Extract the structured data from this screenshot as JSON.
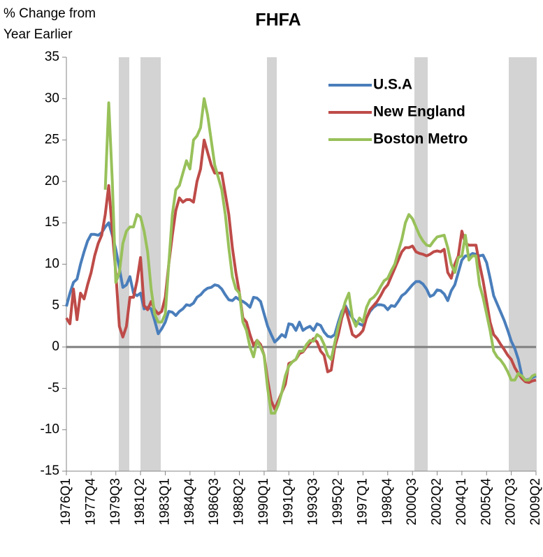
{
  "chart_data": {
    "type": "line",
    "title": "FHFA",
    "ylabel": [
      "% Change from",
      "Year Earlier"
    ],
    "categories": [
      "1976Q1",
      null,
      null,
      null,
      null,
      null,
      null,
      "1977Q4",
      null,
      null,
      null,
      null,
      null,
      null,
      "1979Q3",
      null,
      null,
      null,
      null,
      null,
      null,
      "1981Q2",
      null,
      null,
      null,
      null,
      null,
      null,
      "1983Q1",
      null,
      null,
      null,
      null,
      null,
      null,
      "1984Q4",
      null,
      null,
      null,
      null,
      null,
      null,
      "1986Q3",
      null,
      null,
      null,
      null,
      null,
      null,
      "1988Q2",
      null,
      null,
      null,
      null,
      null,
      null,
      "1990Q1",
      null,
      null,
      null,
      null,
      null,
      null,
      "1991Q4",
      null,
      null,
      null,
      null,
      null,
      null,
      "1993Q3",
      null,
      null,
      null,
      null,
      null,
      null,
      "1995Q2",
      null,
      null,
      null,
      null,
      null,
      null,
      "1997Q1",
      null,
      null,
      null,
      null,
      null,
      null,
      "1998Q4",
      null,
      null,
      null,
      null,
      null,
      null,
      "2000Q3",
      null,
      null,
      null,
      null,
      null,
      null,
      "2002Q2",
      null,
      null,
      null,
      null,
      null,
      null,
      "2004Q1",
      null,
      null,
      null,
      null,
      null,
      null,
      "2005Q4",
      null,
      null,
      null,
      null,
      null,
      null,
      "2007Q3",
      null,
      null,
      null,
      null,
      null,
      null,
      "2009Q2"
    ],
    "series": [
      {
        "name": "U.S.A",
        "color": "#4a7ebb",
        "values": [
          4.9,
          6.5,
          7.8,
          8.2,
          10,
          11.5,
          12.8,
          13.6,
          13.6,
          13.5,
          13.8,
          14.5,
          15,
          13.5,
          11.8,
          9.5,
          7.2,
          7.5,
          8.5,
          6.5,
          6.2,
          6.5,
          4.6,
          4.8,
          4.6,
          3.2,
          1.6,
          2.2,
          3,
          4.3,
          4.2,
          3.8,
          4.3,
          4.6,
          5.1,
          5,
          5.3,
          6,
          6.3,
          6.8,
          7.1,
          7.2,
          7.5,
          7.4,
          7,
          6.3,
          5.7,
          5.6,
          6,
          5.7,
          5.5,
          5.2,
          4.8,
          6,
          5.9,
          5.5,
          4,
          2.5,
          1.5,
          0.6,
          1,
          1.5,
          1.2,
          2.8,
          2.7,
          2,
          3,
          2,
          2.3,
          2.5,
          2,
          2.8,
          2.6,
          1.8,
          1.3,
          1.2,
          1.5,
          3,
          4.3,
          5,
          4.2,
          3.5,
          3,
          2.8,
          2.6,
          3.5,
          4.3,
          4.8,
          5.1,
          5.1,
          5,
          4.5,
          5,
          4.9,
          5.5,
          6.2,
          6.5,
          7,
          7.5,
          7.9,
          7.9,
          7.6,
          7,
          6.1,
          6.3,
          6.9,
          6.8,
          6.4,
          5.6,
          6.8,
          7.5,
          9,
          10.5,
          11,
          11,
          11.3,
          11.2,
          11,
          11.1,
          10.2,
          8.3,
          6.2,
          5.2,
          4.2,
          3.2,
          2,
          0.7,
          -0.2,
          -1.5,
          -3.5,
          -4,
          -3.9,
          -3.7,
          -3.5
        ]
      },
      {
        "name": "New England",
        "color": "#be4b48",
        "values": [
          3.5,
          2.8,
          7,
          3.3,
          6.5,
          5.8,
          7.5,
          9,
          11,
          12.5,
          13.5,
          16,
          19.5,
          14,
          9,
          2.5,
          1.2,
          2.5,
          6,
          6,
          8,
          10.8,
          5,
          4.5,
          5.5,
          4.5,
          4,
          4.3,
          6,
          10,
          13.5,
          16.5,
          18,
          17.5,
          17.8,
          17.8,
          17.5,
          20,
          21.5,
          25,
          23.5,
          22,
          21,
          21,
          21,
          18.5,
          16,
          12,
          9,
          6.5,
          3.5,
          3,
          1.5,
          0.2,
          0.8,
          0.3,
          -1,
          -4,
          -6.5,
          -7.5,
          -6.5,
          -5.5,
          -4.5,
          -2,
          -1.8,
          -1.5,
          -0.8,
          -0.6,
          0,
          0.5,
          1,
          0.6,
          -0.5,
          -1,
          -3,
          -2.8,
          0,
          1.5,
          3.5,
          4.8,
          3.2,
          1.5,
          1.2,
          1.5,
          2,
          3.5,
          4.5,
          5,
          5.5,
          6.2,
          7,
          7.5,
          8.5,
          9.5,
          10.5,
          11.5,
          12,
          12,
          12.2,
          11.5,
          11.3,
          11.2,
          11,
          11.2,
          11.5,
          11.6,
          11.5,
          11.8,
          9,
          8.3,
          10,
          11,
          14,
          12.5,
          12.3,
          12.3,
          12.3,
          10,
          8,
          5.5,
          3,
          1.5,
          1,
          0.3,
          -0.3,
          -1,
          -1.5,
          -2.5,
          -3.2,
          -3.8,
          -4.2,
          -4.3,
          -4.1,
          -4
        ]
      },
      {
        "name": "Boston Metro",
        "color": "#98c15a",
        "values": [
          null,
          null,
          null,
          null,
          null,
          null,
          null,
          null,
          null,
          null,
          null,
          19,
          29.5,
          20,
          7.8,
          9,
          12.5,
          14,
          14.5,
          14.5,
          16,
          15.7,
          14,
          11.5,
          7,
          4,
          3,
          3,
          4,
          10,
          16,
          19,
          19.5,
          21,
          22.5,
          21.5,
          25,
          25.5,
          26.5,
          30,
          28,
          25,
          22,
          20.5,
          19,
          16,
          12,
          8.5,
          7,
          6.5,
          3,
          2,
          0,
          -1.2,
          0.8,
          0,
          -1,
          -5,
          -8,
          -8,
          -7,
          -5.5,
          -3.5,
          -2.3,
          -1.8,
          -1.5,
          -0.5,
          -0.5,
          0.3,
          0.8,
          0.7,
          1.5,
          1.2,
          0.3,
          -1,
          -1.5,
          0.5,
          2.5,
          4,
          5.5,
          6.5,
          3.5,
          2.5,
          3.5,
          3,
          4.8,
          5.7,
          6,
          6.5,
          7.3,
          8,
          8.3,
          9.2,
          10,
          11.5,
          13,
          15,
          16,
          15.5,
          14.5,
          13.5,
          12.8,
          12.3,
          12.2,
          12.8,
          13.3,
          13.4,
          13.5,
          12,
          10,
          9,
          10.8,
          11,
          13.5,
          10.5,
          11,
          11,
          7.5,
          6,
          4,
          2,
          -0.5,
          -1.2,
          -1.6,
          -2.2,
          -3,
          -4,
          -4,
          -3.2,
          -3.5,
          -4,
          -4,
          -3.5,
          -3.3
        ]
      }
    ],
    "ylim": [
      -15,
      35
    ],
    "yticks": [
      -15,
      -10,
      -5,
      0,
      5,
      10,
      15,
      20,
      25,
      30,
      35
    ],
    "legend": "upper right"
  }
}
